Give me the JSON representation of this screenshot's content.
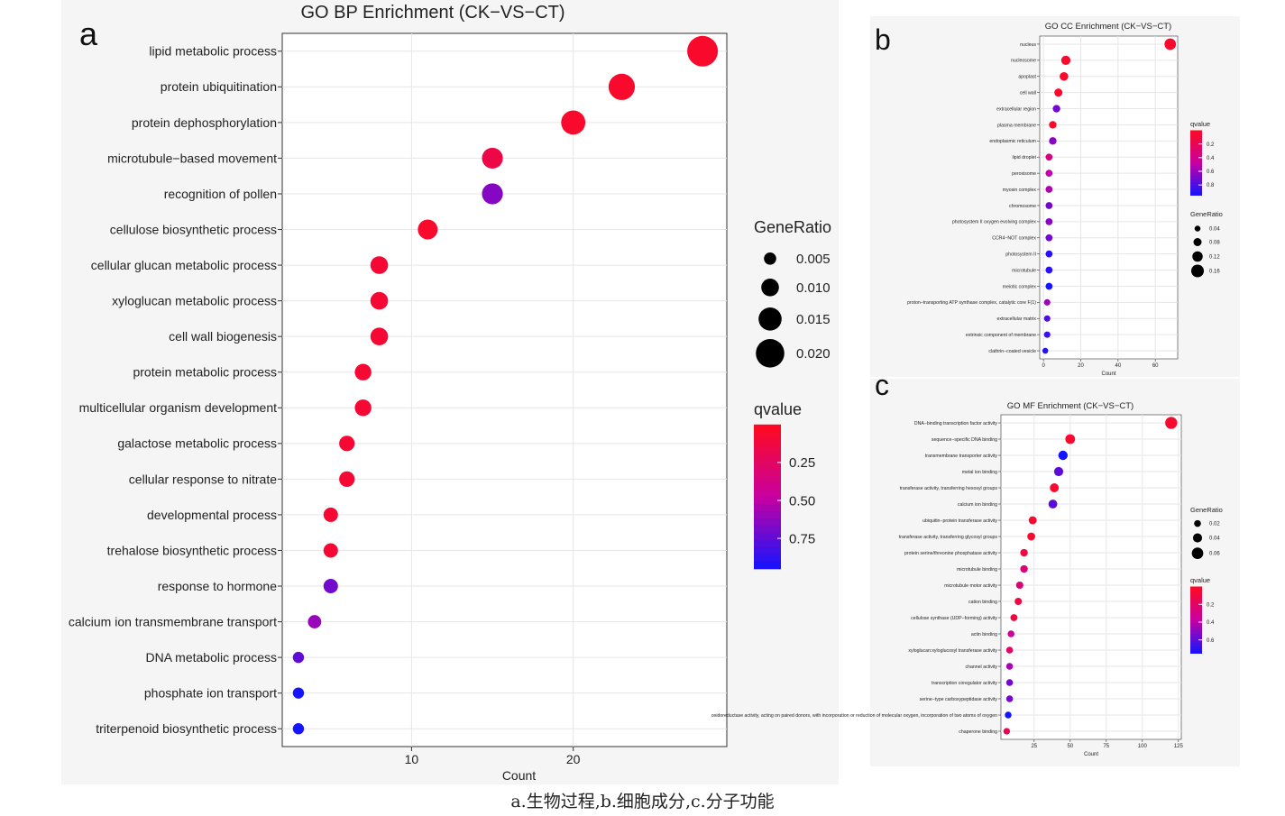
{
  "caption": "a.生物过程,b.细胞成分,c.分子功能",
  "colors": {
    "qvalue_low": "#ff0a1e",
    "qvalue_mid": "#c800a0",
    "qvalue_high": "#1414ff",
    "grid": "#e6e6e6",
    "axis": "#333333"
  },
  "chart_data": [
    {
      "panel_letter": "a",
      "type": "scatter",
      "title": "GO BP Enrichment (CK−VS−CT)",
      "xlabel": "Count",
      "ylabel": "",
      "xlim": [
        2,
        29.5
      ],
      "xticks": [
        10,
        20
      ],
      "grid": true,
      "legend_position": "right",
      "size_legend": {
        "title": "GeneRatio",
        "values": [
          0.005,
          0.01,
          0.015,
          0.02
        ],
        "labels": [
          "0.005",
          "0.010",
          "0.015",
          "0.020"
        ]
      },
      "color_legend": {
        "title": "qvalue",
        "ticks": [
          0.25,
          0.5,
          0.75
        ],
        "labels": [
          "0.25",
          "0.50",
          "0.75"
        ],
        "range": [
          0.0,
          0.95
        ]
      },
      "size_range": [
        0.002,
        0.022
      ],
      "categories": [
        "lipid metabolic process",
        "protein ubiquitination",
        "protein dephosphorylation",
        "microtubule−based movement",
        "recognition of pollen",
        "cellulose biosynthetic process",
        "cellular glucan metabolic process",
        "xyloglucan metabolic process",
        "cell wall biogenesis",
        "protein metabolic process",
        "multicellular organism development",
        "galactose metabolic process",
        "cellular response to nitrate",
        "developmental process",
        "trehalose biosynthetic process",
        "response to hormone",
        "calcium ion transmembrane transport",
        "DNA metabolic process",
        "phosphate ion transport",
        "triterpenoid biosynthetic process"
      ],
      "x": [
        28,
        23,
        20,
        15,
        15,
        11,
        8,
        8,
        8,
        7,
        7,
        6,
        6,
        5,
        5,
        5,
        4,
        3,
        3,
        3
      ],
      "gene_ratio": [
        0.022,
        0.018,
        0.016,
        0.013,
        0.013,
        0.012,
        0.01,
        0.01,
        0.01,
        0.009,
        0.009,
        0.008,
        0.008,
        0.007,
        0.007,
        0.007,
        0.006,
        0.004,
        0.004,
        0.004
      ],
      "qvalue": [
        0.05,
        0.05,
        0.05,
        0.15,
        0.65,
        0.05,
        0.08,
        0.08,
        0.08,
        0.08,
        0.08,
        0.08,
        0.08,
        0.08,
        0.08,
        0.7,
        0.6,
        0.75,
        0.95,
        0.95
      ]
    },
    {
      "panel_letter": "b",
      "type": "scatter",
      "title": "GO CC Enrichment (CK−VS−CT)",
      "xlabel": "Count",
      "ylabel": "",
      "xlim": [
        -2,
        72
      ],
      "xticks": [
        0,
        20,
        40,
        60
      ],
      "grid": true,
      "legend_position": "right",
      "color_legend": {
        "title": "qvalue",
        "ticks": [
          0.2,
          0.4,
          0.6,
          0.8
        ],
        "labels": [
          "0.2",
          "0.4",
          "0.6",
          "0.8"
        ],
        "range": [
          0.0,
          0.95
        ]
      },
      "size_legend": {
        "title": "GeneRatio",
        "values": [
          0.04,
          0.08,
          0.12,
          0.16
        ],
        "labels": [
          "0.04",
          "0.08",
          "0.12",
          "0.16"
        ]
      },
      "size_range": [
        0.0,
        0.16
      ],
      "categories": [
        "nucleus",
        "nucleosome",
        "apoplast",
        "cell wall",
        "extracellular region",
        "plasma membrane",
        "endoplasmic reticulum",
        "lipid droplet",
        "peroxisome",
        "myosin complex",
        "chromosome",
        "photosystem II oxygen evolving complex",
        "CCR4−NOT complex",
        "photosystem II",
        "microtubule",
        "meiotic complex",
        "proton−transporting ATP synthase complex, catalytic core F(1)",
        "extracellular matrix",
        "extrinsic component of membrane",
        "clathrin−coated vesicle"
      ],
      "x": [
        68,
        12,
        11,
        8,
        7,
        5,
        5,
        3,
        3,
        3,
        3,
        3,
        3,
        3,
        3,
        3,
        2,
        2,
        2,
        1
      ],
      "gene_ratio": [
        0.14,
        0.1,
        0.09,
        0.08,
        0.07,
        0.07,
        0.07,
        0.06,
        0.06,
        0.06,
        0.06,
        0.06,
        0.06,
        0.06,
        0.06,
        0.06,
        0.05,
        0.05,
        0.05,
        0.04
      ],
      "qvalue": [
        0.05,
        0.05,
        0.05,
        0.05,
        0.7,
        0.05,
        0.65,
        0.35,
        0.5,
        0.55,
        0.7,
        0.65,
        0.7,
        0.9,
        0.9,
        0.95,
        0.6,
        0.8,
        0.85,
        0.9
      ]
    },
    {
      "panel_letter": "c",
      "type": "scatter",
      "title": "GO MF Enrichment (CK−VS−CT)",
      "xlabel": "Count",
      "ylabel": "",
      "xlim": [
        2,
        127
      ],
      "xticks": [
        25,
        50,
        75,
        100,
        125
      ],
      "grid": true,
      "legend_position": "right",
      "size_legend": {
        "title": "GeneRatio",
        "values": [
          0.02,
          0.04,
          0.06
        ],
        "labels": [
          "0.02",
          "0.04",
          "0.06"
        ]
      },
      "color_legend": {
        "title": "qvalue",
        "ticks": [
          0.2,
          0.4,
          0.6
        ],
        "labels": [
          "0.2",
          "0.4",
          "0.6"
        ],
        "range": [
          0.0,
          0.75
        ]
      },
      "size_range": [
        0.0,
        0.07
      ],
      "categories": [
        "DNA−binding transcription factor activity",
        "sequence−specific DNA binding",
        "transmembrane transporter activity",
        "metal ion binding",
        "transferase activity, transferring hexosyl groups",
        "calcium ion binding",
        "ubiquitin−protein transferase activity",
        "transferase activity, transferring glycosyl groups",
        "protein serine/threonine phosphatase activity",
        "microtubule binding",
        "microtubule motor activity",
        "cation binding",
        "cellulose synthase (UDP−forming) activity",
        "actin binding",
        "xyloglucan:xyloglucosyl transferase activity",
        "channel activity",
        "transcription coregulator activity",
        "serine−type carboxypeptidase activity",
        "oxidoreductase activity, acting on paired donors, with incorporation or reduction of molecular oxygen, incorporation of two atoms of oxygen",
        "chaperone binding"
      ],
      "x": [
        120,
        50,
        45,
        42,
        39,
        38,
        24,
        23,
        18,
        18,
        15,
        14,
        11,
        9,
        8,
        8,
        8,
        8,
        7,
        6
      ],
      "gene_ratio": [
        0.065,
        0.045,
        0.042,
        0.04,
        0.038,
        0.037,
        0.03,
        0.029,
        0.026,
        0.026,
        0.024,
        0.023,
        0.022,
        0.02,
        0.02,
        0.02,
        0.02,
        0.02,
        0.019,
        0.018
      ],
      "qvalue": [
        0.05,
        0.05,
        0.75,
        0.6,
        0.05,
        0.6,
        0.05,
        0.05,
        0.1,
        0.25,
        0.25,
        0.1,
        0.1,
        0.35,
        0.2,
        0.45,
        0.55,
        0.55,
        0.75,
        0.15
      ]
    }
  ]
}
